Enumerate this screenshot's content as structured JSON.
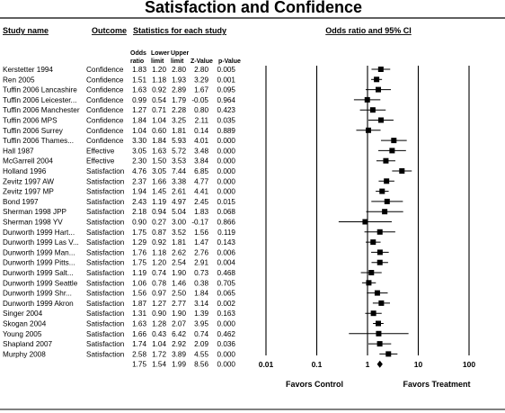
{
  "title": "Satisfaction and Confidence",
  "headers": {
    "study_name": "Study name",
    "outcome": "Outcome",
    "stats": "Statistics for each study",
    "plot": "Odds ratio and 95% CI",
    "col_or_1": "Odds",
    "col_or_2": "ratio",
    "col_lower_1": "Lower",
    "col_lower_2": "limit",
    "col_upper_1": "Upper",
    "col_upper_2": "limit",
    "col_z": "Z-Value",
    "col_p": "p-Value"
  },
  "favors": {
    "left": "Favors Control",
    "right": "Favors Treatment"
  },
  "colors": {
    "text": "#000000",
    "marker": "#000000",
    "background": "#ffffff"
  },
  "chart_data": {
    "type": "forest",
    "x_scale": "log",
    "xlim": [
      0.01,
      100
    ],
    "x_ticks": [
      "0.01",
      "0.1",
      "1",
      "10",
      "100"
    ],
    "x_tick_values": [
      0.01,
      0.1,
      1,
      10,
      100
    ],
    "rows": [
      {
        "study": "Kerstetter 1994",
        "outcome": "Confidence",
        "or": "1.83",
        "lower": "1.20",
        "upper": "2.80",
        "z": "2.80",
        "p": "0.005"
      },
      {
        "study": "Ren 2005",
        "outcome": "Confidence",
        "or": "1.51",
        "lower": "1.18",
        "upper": "1.93",
        "z": "3.29",
        "p": "0.001"
      },
      {
        "study": "Tuffin 2006 Lancashire",
        "outcome": "Confidence",
        "or": "1.63",
        "lower": "0.92",
        "upper": "2.89",
        "z": "1.67",
        "p": "0.095"
      },
      {
        "study": "Tuffin 2006 Leicester...",
        "outcome": "Confidence",
        "or": "0.99",
        "lower": "0.54",
        "upper": "1.79",
        "z": "-0.05",
        "p": "0.964"
      },
      {
        "study": "Tuffin 2006 Manchester",
        "outcome": "Confidence",
        "or": "1.27",
        "lower": "0.71",
        "upper": "2.28",
        "z": "0.80",
        "p": "0.423"
      },
      {
        "study": "Tuffin 2006 MPS",
        "outcome": "Confidence",
        "or": "1.84",
        "lower": "1.04",
        "upper": "3.25",
        "z": "2.11",
        "p": "0.035"
      },
      {
        "study": "Tuffin 2006 Surrey",
        "outcome": "Confidence",
        "or": "1.04",
        "lower": "0.60",
        "upper": "1.81",
        "z": "0.14",
        "p": "0.889"
      },
      {
        "study": "Tuffin 2006 Thames...",
        "outcome": "Confidence",
        "or": "3.30",
        "lower": "1.84",
        "upper": "5.93",
        "z": "4.01",
        "p": "0.000"
      },
      {
        "study": "Hall 1987",
        "outcome": "Effective",
        "or": "3.05",
        "lower": "1.63",
        "upper": "5.72",
        "z": "3.48",
        "p": "0.000"
      },
      {
        "study": "McGarrell 2004",
        "outcome": "Effective",
        "or": "2.30",
        "lower": "1.50",
        "upper": "3.53",
        "z": "3.84",
        "p": "0.000"
      },
      {
        "study": "Holland 1996",
        "outcome": "Satisfaction",
        "or": "4.76",
        "lower": "3.05",
        "upper": "7.44",
        "z": "6.85",
        "p": "0.000"
      },
      {
        "study": "Zevitz 1997 AW",
        "outcome": "Satisfaction",
        "or": "2.37",
        "lower": "1.66",
        "upper": "3.38",
        "z": "4.77",
        "p": "0.000"
      },
      {
        "study": "Zevitz 1997 MP",
        "outcome": "Satisfaction",
        "or": "1.94",
        "lower": "1.45",
        "upper": "2.61",
        "z": "4.41",
        "p": "0.000"
      },
      {
        "study": "Bond 1997",
        "outcome": "Satisfaction",
        "or": "2.43",
        "lower": "1.19",
        "upper": "4.97",
        "z": "2.45",
        "p": "0.015"
      },
      {
        "study": "Sherman 1998 JPP",
        "outcome": "Satisfaction",
        "or": "2.18",
        "lower": "0.94",
        "upper": "5.04",
        "z": "1.83",
        "p": "0.068"
      },
      {
        "study": "Sherman 1998 YV",
        "outcome": "Satisfaction",
        "or": "0.90",
        "lower": "0.27",
        "upper": "3.00",
        "z": "-0.17",
        "p": "0.866"
      },
      {
        "study": "Dunworth 1999 Hart...",
        "outcome": "Satisfaction",
        "or": "1.75",
        "lower": "0.87",
        "upper": "3.52",
        "z": "1.56",
        "p": "0.119"
      },
      {
        "study": "Dunworth 1999 Las V...",
        "outcome": "Satisfaction",
        "or": "1.29",
        "lower": "0.92",
        "upper": "1.81",
        "z": "1.47",
        "p": "0.143"
      },
      {
        "study": "Dunworth 1999 Man...",
        "outcome": "Satisfaction",
        "or": "1.76",
        "lower": "1.18",
        "upper": "2.62",
        "z": "2.76",
        "p": "0.006"
      },
      {
        "study": "Dunworth 1999 Pitts...",
        "outcome": "Satisfaction",
        "or": "1.75",
        "lower": "1.20",
        "upper": "2.54",
        "z": "2.91",
        "p": "0.004"
      },
      {
        "study": "Dunworth 1999 Salt...",
        "outcome": "Satisfaction",
        "or": "1.19",
        "lower": "0.74",
        "upper": "1.90",
        "z": "0.73",
        "p": "0.468"
      },
      {
        "study": "Dunworth 1999 Seattle",
        "outcome": "Satisfaction",
        "or": "1.06",
        "lower": "0.78",
        "upper": "1.46",
        "z": "0.38",
        "p": "0.705"
      },
      {
        "study": "Dunworth 1999 Shr...",
        "outcome": "Satisfaction",
        "or": "1.56",
        "lower": "0.97",
        "upper": "2.50",
        "z": "1.84",
        "p": "0.065"
      },
      {
        "study": "Dunworth 1999 Akron",
        "outcome": "Satisfaction",
        "or": "1.87",
        "lower": "1.27",
        "upper": "2.77",
        "z": "3.14",
        "p": "0.002"
      },
      {
        "study": "Singer 2004",
        "outcome": "Satisfaction",
        "or": "1.31",
        "lower": "0.90",
        "upper": "1.90",
        "z": "1.39",
        "p": "0.163"
      },
      {
        "study": "Skogan 2004",
        "outcome": "Satisfaction",
        "or": "1.63",
        "lower": "1.28",
        "upper": "2.07",
        "z": "3.95",
        "p": "0.000"
      },
      {
        "study": "Young 2005",
        "outcome": "Satisfaction",
        "or": "1.66",
        "lower": "0.43",
        "upper": "6.42",
        "z": "0.74",
        "p": "0.462"
      },
      {
        "study": "Shapland 2007",
        "outcome": "Satisfaction",
        "or": "1.74",
        "lower": "1.04",
        "upper": "2.92",
        "z": "2.09",
        "p": "0.036"
      },
      {
        "study": "Murphy 2008",
        "outcome": "Satisfaction",
        "or": "2.58",
        "lower": "1.72",
        "upper": "3.89",
        "z": "4.55",
        "p": "0.000"
      }
    ],
    "summary": {
      "study": "",
      "outcome": "",
      "or": "1.75",
      "lower": "1.54",
      "upper": "1.99",
      "z": "8.56",
      "p": "0.000"
    }
  }
}
